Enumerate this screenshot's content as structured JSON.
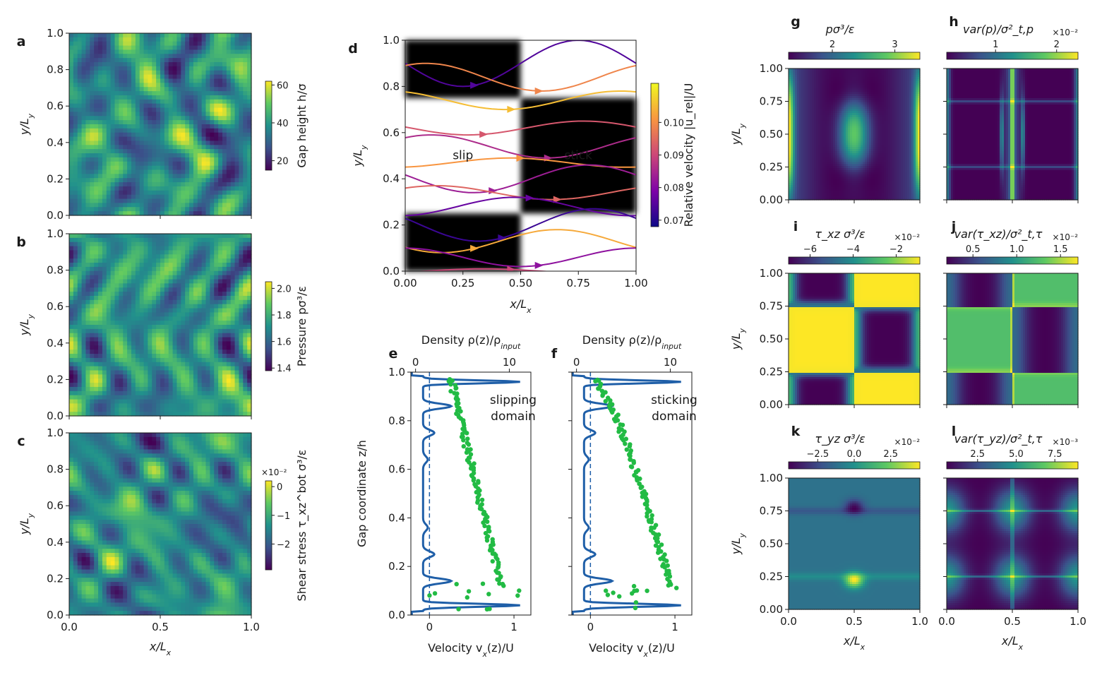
{
  "colors": {
    "viridis": [
      "#440154",
      "#3b528b",
      "#21918c",
      "#5ec962",
      "#fde725"
    ],
    "plasma": [
      "#0d0887",
      "#7e03a8",
      "#cc4778",
      "#f89540",
      "#f0f921"
    ],
    "velocity_line": "#1f5fa8",
    "density_dots": "#22bb44",
    "axis": "#1a1a1a"
  },
  "chart_data": [
    {
      "id": "a",
      "type": "heatmap",
      "letter": "a",
      "xlabel": "x/L",
      "xlabel_sub": "x",
      "ylabel": "y/L",
      "ylabel_sub": "y",
      "xlim": [
        0.0,
        1.0
      ],
      "ylim": [
        0.0,
        1.0
      ],
      "xticks": [
        0.0,
        0.5,
        1.0
      ],
      "xtick_labels": [
        "0.0",
        "0.5",
        "1.0"
      ],
      "yticks": [
        0.0,
        0.2,
        0.4,
        0.6,
        0.8,
        1.0
      ],
      "ytick_labels": [
        "0.0",
        "0.2",
        "0.4",
        "0.6",
        "0.8",
        "1.0"
      ],
      "show_xlabels": false,
      "colormap": "viridis",
      "seed": 3,
      "colorbar": {
        "label": "Gap height h/σ",
        "range": [
          15,
          62
        ],
        "ticks": [
          20,
          40,
          60
        ],
        "tick_labels": [
          "20",
          "40",
          "60"
        ],
        "multiplier": ""
      }
    },
    {
      "id": "b",
      "type": "heatmap",
      "letter": "b",
      "xlabel": "x/L",
      "xlabel_sub": "x",
      "ylabel": "y/L",
      "ylabel_sub": "y",
      "xlim": [
        0.0,
        1.0
      ],
      "ylim": [
        0.0,
        1.0
      ],
      "xticks": [
        0.0,
        0.5,
        1.0
      ],
      "xtick_labels": [
        "0.0",
        "0.5",
        "1.0"
      ],
      "yticks": [
        0.0,
        0.2,
        0.4,
        0.6,
        0.8,
        1.0
      ],
      "ytick_labels": [
        "0.0",
        "0.2",
        "0.4",
        "0.6",
        "0.8",
        "1.0"
      ],
      "show_xlabels": false,
      "colormap": "viridis",
      "seed": 11,
      "colorbar": {
        "label": "Pressure pσ³/ε",
        "range": [
          1.38,
          2.05
        ],
        "ticks": [
          1.4,
          1.6,
          1.8,
          2.0
        ],
        "tick_labels": [
          "1.4",
          "1.6",
          "1.8",
          "2.0"
        ],
        "multiplier": ""
      }
    },
    {
      "id": "c",
      "type": "heatmap",
      "letter": "c",
      "xlabel": "x/L",
      "xlabel_sub": "x",
      "ylabel": "y/L",
      "ylabel_sub": "y",
      "xlim": [
        0.0,
        1.0
      ],
      "ylim": [
        0.0,
        1.0
      ],
      "xticks": [
        0.0,
        0.5,
        1.0
      ],
      "xtick_labels": [
        "0.0",
        "0.5",
        "1.0"
      ],
      "yticks": [
        0.0,
        0.2,
        0.4,
        0.6,
        0.8,
        1.0
      ],
      "ytick_labels": [
        "0.0",
        "0.2",
        "0.4",
        "0.6",
        "0.8",
        "1.0"
      ],
      "show_xlabels": true,
      "colormap": "viridis",
      "seed": 23,
      "colorbar": {
        "label": "Shear stress τ_xz^bot σ³/ε",
        "range": [
          -2.9,
          0.2
        ],
        "ticks": [
          -2,
          -1,
          0
        ],
        "tick_labels": [
          "−2",
          "−1",
          "0"
        ],
        "multiplier": "×10⁻²"
      }
    },
    {
      "id": "d",
      "type": "streamplot",
      "letter": "d",
      "xlabel": "x/L",
      "xlabel_sub": "x",
      "ylabel": "y/L",
      "ylabel_sub": "y",
      "xlim": [
        0.0,
        1.0
      ],
      "ylim": [
        0.0,
        1.0
      ],
      "xticks": [
        0.0,
        0.25,
        0.5,
        0.75,
        1.0
      ],
      "xtick_labels": [
        "0.00",
        "0.25",
        "0.50",
        "0.75",
        "1.00"
      ],
      "yticks": [
        0.0,
        0.2,
        0.4,
        0.6,
        0.8,
        1.0
      ],
      "ytick_labels": [
        "0.0",
        "0.2",
        "0.4",
        "0.6",
        "0.8",
        "1.0"
      ],
      "annotations": [
        "slip",
        "stick"
      ],
      "colormap": "plasma",
      "colorbar": {
        "label": "Relative velocity |u_rel|/U",
        "range": [
          0.068,
          0.112
        ],
        "ticks": [
          0.07,
          0.08,
          0.09,
          0.1
        ],
        "tick_labels": [
          "0.07",
          "0.08",
          "0.09",
          "0.10"
        ],
        "multiplier": ""
      }
    },
    {
      "id": "e",
      "type": "profile",
      "letter": "e",
      "annotation": [
        "slipping",
        "domain"
      ],
      "top_label": "Density ρ(z)/ρ",
      "top_label_sub": "input",
      "bottom_label": "Velocity v",
      "bottom_label_after": "(z)/U",
      "bottom_label_sub": "x",
      "ylabel": "Gap coordinate z/h",
      "show_ylabel": true,
      "bottom_xlim": [
        -0.22,
        1.2
      ],
      "bottom_xticks": [
        0,
        1
      ],
      "bottom_xtick_labels": [
        "0",
        "1"
      ],
      "top_xlim": [
        -0.5,
        12.3
      ],
      "top_xticks": [
        0,
        10
      ],
      "top_xtick_labels": [
        "0",
        "10"
      ],
      "ylim": [
        0.0,
        1.0
      ],
      "yticks": [
        0.0,
        0.2,
        0.4,
        0.6,
        0.8,
        1.0
      ],
      "ytick_labels": [
        "0.0",
        "0.2",
        "0.4",
        "0.6",
        "0.8",
        "1.0"
      ],
      "velocity_z": [
        0.0,
        0.1,
        0.2,
        0.3,
        0.4,
        0.5,
        0.6,
        0.7,
        0.8,
        0.9,
        1.0
      ],
      "velocity_v": [
        0.92,
        0.86,
        0.79,
        0.72,
        0.65,
        0.58,
        0.51,
        0.44,
        0.37,
        0.3,
        0.24
      ],
      "wall_peak_amp": 1.15,
      "density_seed": 5
    },
    {
      "id": "f",
      "type": "profile",
      "letter": "f",
      "annotation": [
        "sticking",
        "domain"
      ],
      "top_label": "Density ρ(z)/ρ",
      "top_label_sub": "input",
      "bottom_label": "Velocity v",
      "bottom_label_after": "(z)/U",
      "bottom_label_sub": "x",
      "ylabel": "Gap coordinate z/h",
      "show_ylabel": false,
      "bottom_xlim": [
        -0.22,
        1.2
      ],
      "bottom_xticks": [
        0,
        1
      ],
      "bottom_xtick_labels": [
        "0",
        "1"
      ],
      "top_xlim": [
        -0.5,
        12.3
      ],
      "top_xticks": [
        0,
        10
      ],
      "top_xtick_labels": [
        "0",
        "10"
      ],
      "ylim": [
        0.0,
        1.0
      ],
      "yticks": [
        0.0,
        0.2,
        0.4,
        0.6,
        0.8,
        1.0
      ],
      "ytick_labels": [
        "0.0",
        "0.2",
        "0.4",
        "0.6",
        "0.8",
        "1.0"
      ],
      "velocity_z": [
        0.0,
        0.1,
        0.2,
        0.3,
        0.4,
        0.5,
        0.6,
        0.7,
        0.8,
        0.9,
        1.0
      ],
      "velocity_v": [
        1.02,
        0.96,
        0.88,
        0.8,
        0.71,
        0.62,
        0.53,
        0.43,
        0.32,
        0.18,
        0.02
      ],
      "wall_peak_amp": 1.15,
      "density_seed": 9
    },
    {
      "id": "g",
      "type": "heatmap",
      "letter": "g",
      "pattern": "pressure_mean",
      "xlabel": "x/L",
      "xlabel_sub": "x",
      "ylabel": "y/L",
      "ylabel_sub": "y",
      "xlim": [
        0.0,
        1.0
      ],
      "ylim": [
        0.0,
        1.0
      ],
      "xticks": [
        0.0,
        0.5,
        1.0
      ],
      "xtick_labels": [
        "0.0",
        "0.5",
        "1.0"
      ],
      "yticks": [
        0.0,
        0.25,
        0.5,
        0.75,
        1.0
      ],
      "ytick_labels": [
        "0.00",
        "0.25",
        "0.50",
        "0.75",
        "1.00"
      ],
      "show_xlabels": false,
      "show_ylabels": true,
      "colormap": "viridis",
      "colorbar": {
        "label": "pσ³/ε",
        "range": [
          1.3,
          3.4
        ],
        "ticks": [
          2,
          3
        ],
        "tick_labels": [
          "2",
          "3"
        ],
        "multiplier": ""
      }
    },
    {
      "id": "h",
      "type": "heatmap",
      "letter": "h",
      "pattern": "pressure_var",
      "xlabel": "x/L",
      "xlabel_sub": "x",
      "ylabel": "y/L",
      "ylabel_sub": "y",
      "xlim": [
        0.0,
        1.0
      ],
      "ylim": [
        0.0,
        1.0
      ],
      "xticks": [
        0.0,
        0.5,
        1.0
      ],
      "xtick_labels": [
        "0.0",
        "0.5",
        "1.0"
      ],
      "yticks": [
        0.0,
        0.25,
        0.5,
        0.75,
        1.0
      ],
      "ytick_labels": [
        "0.00",
        "0.25",
        "0.50",
        "0.75",
        "1.00"
      ],
      "show_xlabels": false,
      "show_ylabels": false,
      "colormap": "viridis",
      "colorbar": {
        "label": "var(p)/σ²_t,p",
        "range": [
          0.2,
          2.35
        ],
        "ticks": [
          1,
          2
        ],
        "tick_labels": [
          "1",
          "2"
        ],
        "multiplier": "×10⁻²"
      }
    },
    {
      "id": "i",
      "type": "heatmap",
      "letter": "i",
      "pattern": "shear_xz_mean",
      "xlabel": "x/L",
      "xlabel_sub": "x",
      "ylabel": "y/L",
      "ylabel_sub": "y",
      "xlim": [
        0.0,
        1.0
      ],
      "ylim": [
        0.0,
        1.0
      ],
      "xticks": [
        0.0,
        0.5,
        1.0
      ],
      "xtick_labels": [
        "0.0",
        "0.5",
        "1.0"
      ],
      "yticks": [
        0.0,
        0.25,
        0.5,
        0.75,
        1.0
      ],
      "ytick_labels": [
        "0.00",
        "0.25",
        "0.50",
        "0.75",
        "1.00"
      ],
      "show_xlabels": false,
      "show_ylabels": true,
      "colormap": "viridis",
      "colorbar": {
        "label": "τ_xz σ³/ε",
        "range": [
          -7.0,
          -0.9
        ],
        "ticks": [
          -6,
          -4,
          -2
        ],
        "tick_labels": [
          "−6",
          "−4",
          "−2"
        ],
        "multiplier": "×10⁻²"
      }
    },
    {
      "id": "j",
      "type": "heatmap",
      "letter": "j",
      "pattern": "shear_xz_var",
      "xlabel": "x/L",
      "xlabel_sub": "x",
      "ylabel": "y/L",
      "ylabel_sub": "y",
      "xlim": [
        0.0,
        1.0
      ],
      "ylim": [
        0.0,
        1.0
      ],
      "xticks": [
        0.0,
        0.5,
        1.0
      ],
      "xtick_labels": [
        "0.0",
        "0.5",
        "1.0"
      ],
      "yticks": [
        0.0,
        0.25,
        0.5,
        0.75,
        1.0
      ],
      "ytick_labels": [
        "0.00",
        "0.25",
        "0.50",
        "0.75",
        "1.00"
      ],
      "show_xlabels": false,
      "show_ylabels": false,
      "colormap": "viridis",
      "colorbar": {
        "label": "var(τ_xz)/σ²_t,τ",
        "range": [
          0.2,
          1.7
        ],
        "ticks": [
          0.5,
          1.0,
          1.5
        ],
        "tick_labels": [
          "0.5",
          "1.0",
          "1.5"
        ],
        "multiplier": "×10⁻²"
      }
    },
    {
      "id": "k",
      "type": "heatmap",
      "letter": "k",
      "pattern": "shear_yz_mean",
      "xlabel": "x/L",
      "xlabel_sub": "x",
      "ylabel": "y/L",
      "ylabel_sub": "y",
      "xlim": [
        0.0,
        1.0
      ],
      "ylim": [
        0.0,
        1.0
      ],
      "xticks": [
        0.0,
        0.5,
        1.0
      ],
      "xtick_labels": [
        "0.0",
        "0.5",
        "1.0"
      ],
      "yticks": [
        0.0,
        0.25,
        0.5,
        0.75,
        1.0
      ],
      "ytick_labels": [
        "0.00",
        "0.25",
        "0.50",
        "0.75",
        "1.00"
      ],
      "show_xlabels": true,
      "show_ylabels": true,
      "colormap": "viridis",
      "colorbar": {
        "label": "τ_yz σ³/ε",
        "range": [
          -4.5,
          4.5
        ],
        "ticks": [
          -2.5,
          0.0,
          2.5
        ],
        "tick_labels": [
          "−2.5",
          "0.0",
          "2.5"
        ],
        "multiplier": "×10⁻²"
      }
    },
    {
      "id": "l",
      "type": "heatmap",
      "letter": "l",
      "pattern": "shear_yz_var",
      "xlabel": "x/L",
      "xlabel_sub": "x",
      "ylabel": "y/L",
      "ylabel_sub": "y",
      "xlim": [
        0.0,
        1.0
      ],
      "ylim": [
        0.0,
        1.0
      ],
      "xticks": [
        0.0,
        0.5,
        1.0
      ],
      "xtick_labels": [
        "0.0",
        "0.5",
        "1.0"
      ],
      "yticks": [
        0.0,
        0.25,
        0.5,
        0.75,
        1.0
      ],
      "ytick_labels": [
        "0.00",
        "0.25",
        "0.50",
        "0.75",
        "1.00"
      ],
      "show_xlabels": true,
      "show_ylabels": false,
      "colormap": "viridis",
      "colorbar": {
        "label": "var(τ_yz)/σ²_t,τ",
        "range": [
          0.5,
          9.0
        ],
        "ticks": [
          2.5,
          5.0,
          7.5
        ],
        "tick_labels": [
          "2.5",
          "5.0",
          "7.5"
        ],
        "multiplier": "×10⁻³"
      }
    }
  ]
}
